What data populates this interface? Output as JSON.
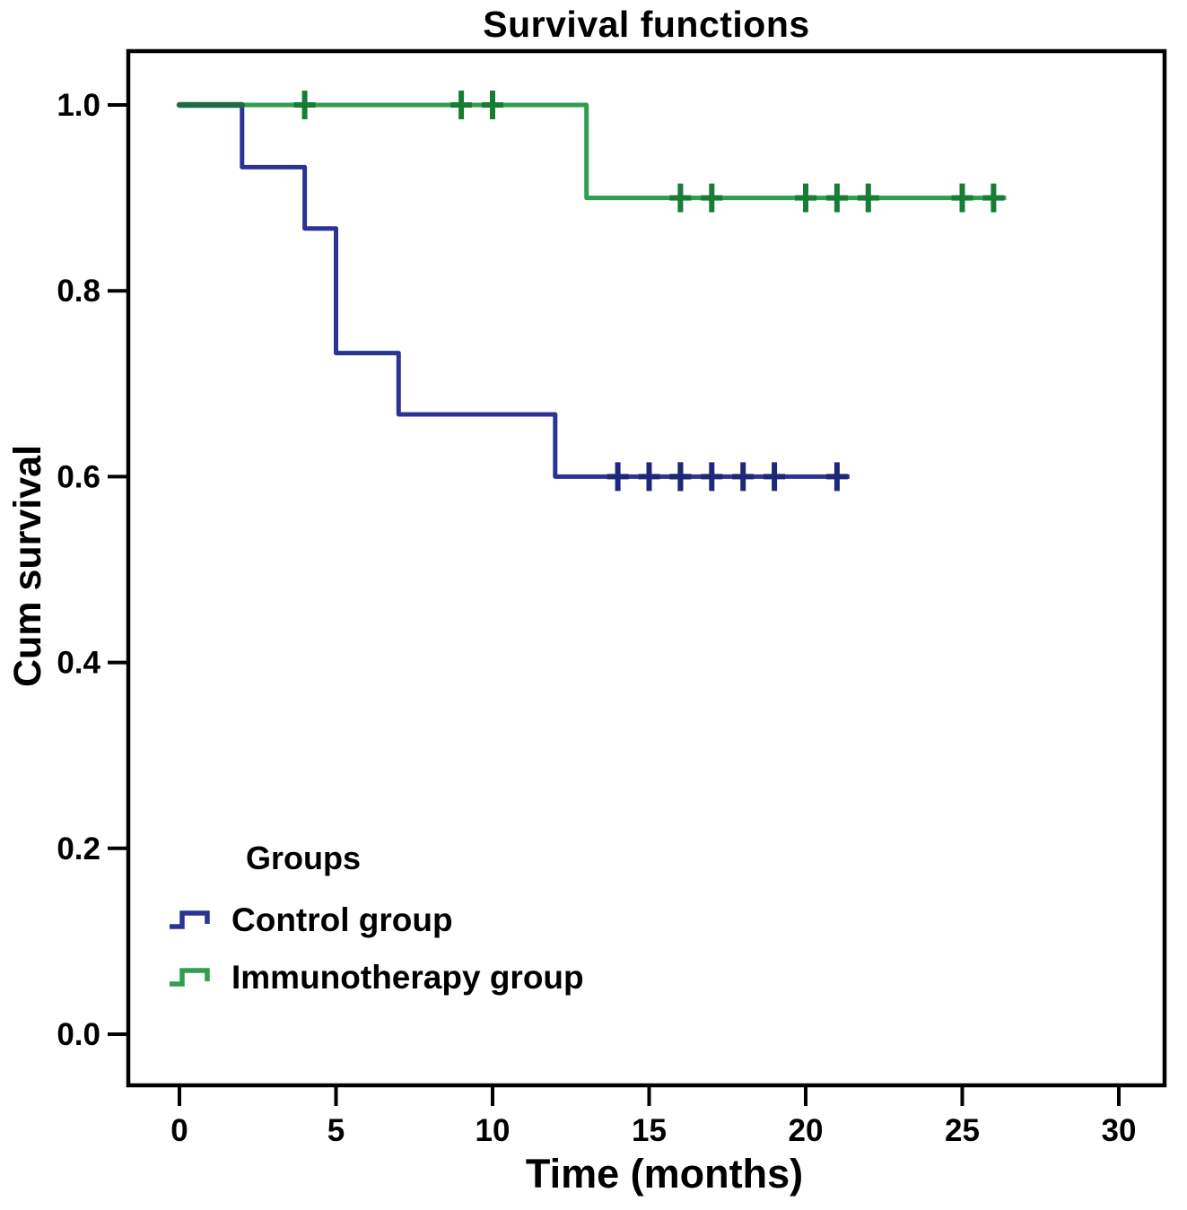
{
  "chart_data": {
    "type": "line",
    "subtype": "kaplan_meier_step",
    "title": "Survival functions",
    "xlabel": "Time (months)",
    "ylabel": "Cum survival",
    "xlim": [
      0,
      31.5
    ],
    "ylim": [
      -0.05,
      1.05
    ],
    "xticks": [
      0,
      5,
      10,
      15,
      20,
      25,
      30
    ],
    "ytick_labels": [
      "0.0",
      "0.2",
      "0.4",
      "0.6",
      "0.8",
      "1.0"
    ],
    "grid": false,
    "legend_position": "inside-lower-left",
    "legend": {
      "title": "Groups",
      "entries": [
        {
          "label": "Control group"
        },
        {
          "label": "Immunotherapy group"
        }
      ]
    },
    "series": [
      {
        "name": "Control group",
        "color": "#2b3494",
        "censor_color": "#1d2878",
        "steps": [
          [
            0,
            1.0
          ],
          [
            2,
            0.933
          ],
          [
            4,
            0.867
          ],
          [
            5,
            0.733
          ],
          [
            7,
            0.667
          ],
          [
            12,
            0.6
          ]
        ],
        "end_time": 21.4,
        "censored_times": [
          14,
          15,
          16,
          16,
          17,
          18,
          19,
          21
        ]
      },
      {
        "name": "Immunotherapy group",
        "color": "#2f9e4d",
        "censor_color": "#167d35",
        "steps": [
          [
            0,
            1.0
          ],
          [
            13,
            0.9
          ]
        ],
        "end_time": 26.4,
        "censored_times": [
          4,
          9,
          10,
          16,
          17,
          20,
          21,
          22,
          25,
          26
        ]
      }
    ],
    "overlap_segment": {
      "t_from": 0,
      "t_to": 2,
      "value": 1.0,
      "color": "#1c6b45"
    },
    "frame_color": "#000000",
    "background_color": "#ffffff"
  }
}
